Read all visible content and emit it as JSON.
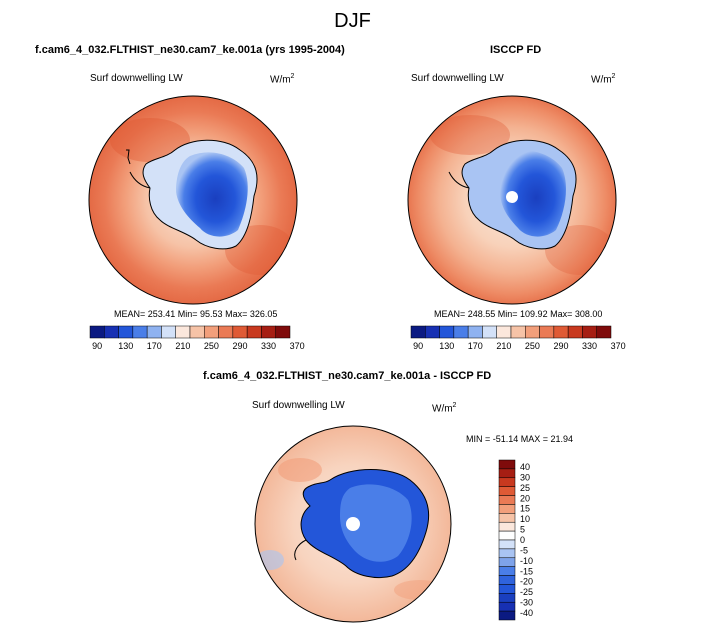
{
  "season_title": "DJF",
  "panels": [
    {
      "title": "f.cam6_4_032.FLTHIST_ne30.cam7_ke.001a (yrs 1995-2004)",
      "variable_label": "Surf downwelling LW",
      "units_base": "W/m",
      "units_exp": "2",
      "stats": "MEAN= 253.41  Min=  95.53  Max= 326.05"
    },
    {
      "title": "ISCCP FD",
      "variable_label": "Surf downwelling LW",
      "units_base": "W/m",
      "units_exp": "2",
      "stats": "MEAN= 248.55  Min= 109.92  Max= 308.00"
    }
  ],
  "abs_colorbar": {
    "colors": [
      "#0b1a82",
      "#1730b3",
      "#2356d9",
      "#4a7ee8",
      "#8fb2f0",
      "#d3e1f8",
      "#fbe7dc",
      "#f6c3a7",
      "#f29f7b",
      "#ea7a55",
      "#df5a35",
      "#c8391f",
      "#a61e13",
      "#7f0b0b"
    ],
    "labels": [
      "90",
      "130",
      "170",
      "210",
      "250",
      "290",
      "330",
      "370"
    ]
  },
  "diff_panel": {
    "title": "f.cam6_4_032.FLTHIST_ne30.cam7_ke.001a - ISCCP FD",
    "variable_label": "Surf downwelling LW",
    "units_base": "W/m",
    "units_exp": "2",
    "stats": "MIN = -51.14 MAX =  21.94"
  },
  "diff_colorbar": {
    "colors": [
      "#7f0b0b",
      "#a61e13",
      "#c8391f",
      "#df5a35",
      "#ea7a55",
      "#f29f7b",
      "#f6c3a7",
      "#fbe7dc",
      "#ffffff",
      "#d3e1f8",
      "#a9c4f3",
      "#7ea3ea",
      "#4a7ee8",
      "#2f63dd",
      "#2356d9",
      "#1a3fbf",
      "#1730b3",
      "#0b1a82"
    ],
    "labels": [
      "40",
      "30",
      "25",
      "20",
      "15",
      "10",
      "5",
      "0",
      "-5",
      "-10",
      "-15",
      "-20",
      "-25",
      "-30",
      "-40"
    ]
  }
}
